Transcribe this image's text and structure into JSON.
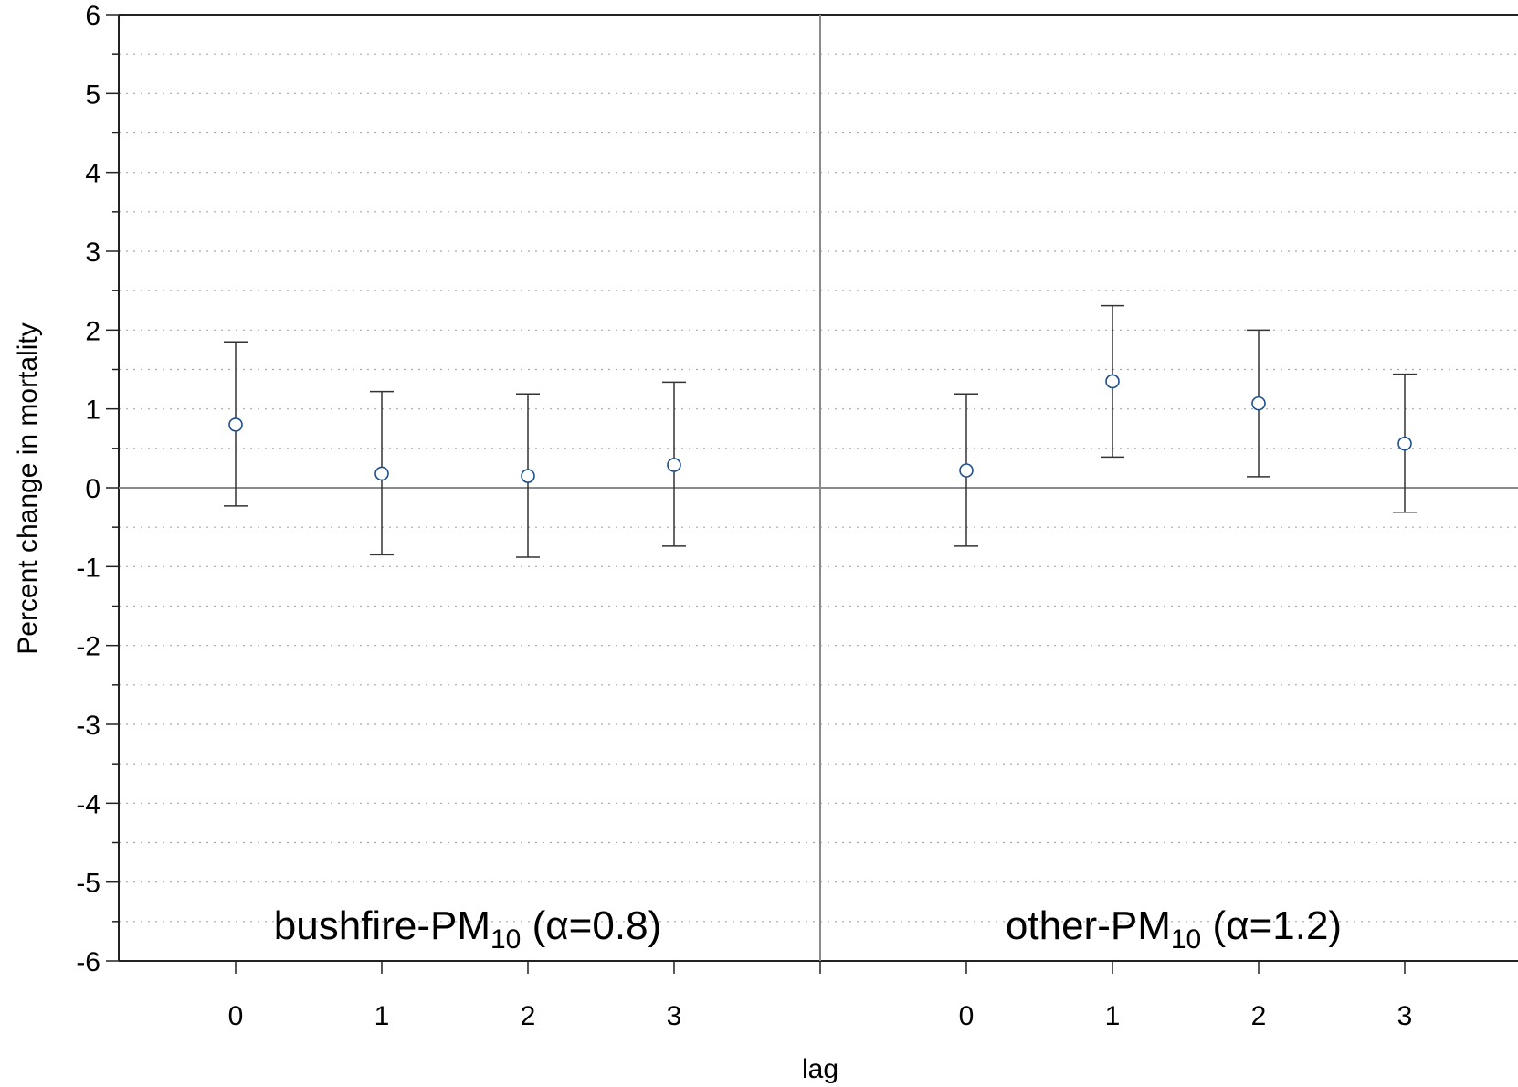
{
  "chart_data": {
    "type": "scatter",
    "subtype": "point-with-error-bars",
    "xlabel": "lag",
    "ylabel": "Percent change in mortality",
    "ylim": [
      -6,
      6
    ],
    "yticks": [
      6,
      5,
      4,
      3,
      2,
      1,
      0,
      -1,
      -2,
      -3,
      -4,
      -5,
      -6
    ],
    "grid": "horizontal dotted at every 0.5",
    "reference_line_y": 0,
    "marker": "open circle",
    "marker_color": "#1f4e8c",
    "errorbar_color": "#333333",
    "panels": [
      {
        "label_main": "bushfire-PM",
        "label_sub": "10",
        "label_tail": " (α=0.8)",
        "x": [
          "0",
          "1",
          "2",
          "3"
        ],
        "estimate": [
          0.8,
          0.18,
          0.15,
          0.29
        ],
        "lower": [
          -0.23,
          -0.85,
          -0.88,
          -0.74
        ],
        "upper": [
          1.85,
          1.22,
          1.19,
          1.34
        ]
      },
      {
        "label_main": "other-PM",
        "label_sub": "10",
        "label_tail": " (α=1.2)",
        "x": [
          "0",
          "1",
          "2",
          "3"
        ],
        "estimate": [
          0.22,
          1.35,
          1.07,
          0.56
        ],
        "lower": [
          -0.74,
          0.39,
          0.14,
          -0.31
        ],
        "upper": [
          1.19,
          2.31,
          2.0,
          1.44
        ]
      }
    ]
  }
}
